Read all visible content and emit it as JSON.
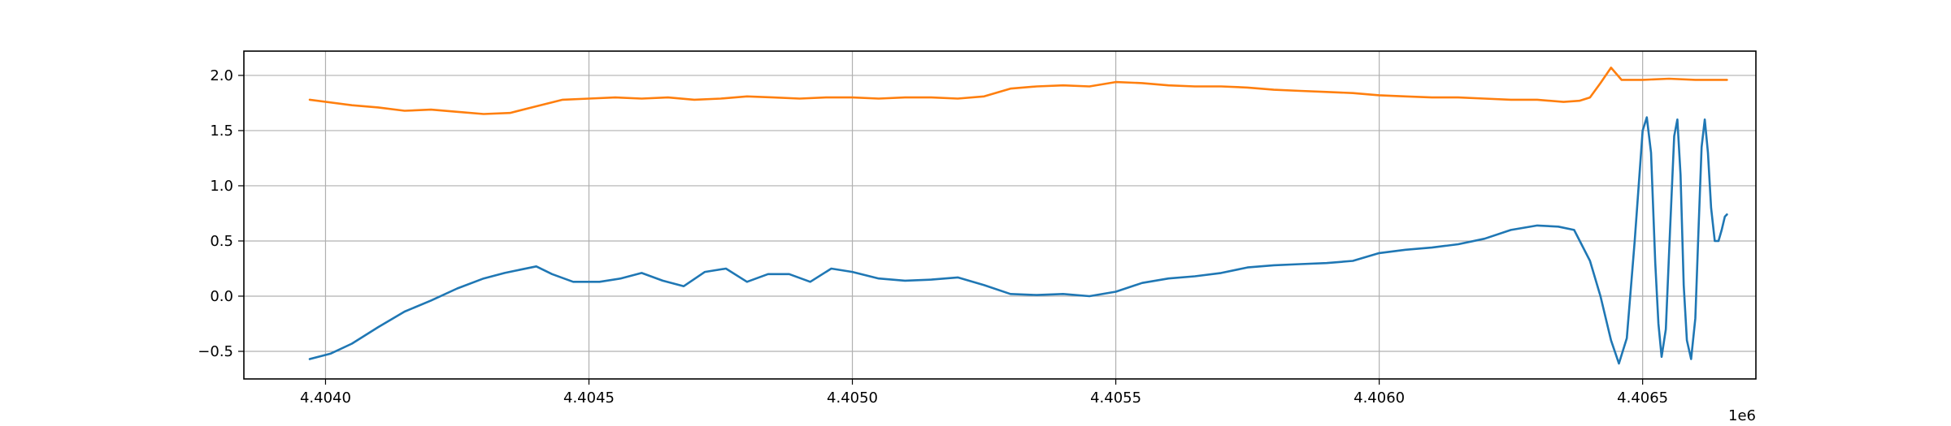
{
  "chart_data": {
    "type": "line",
    "title": "",
    "xlabel": "",
    "ylabel": "",
    "x_offset_label": "1e6",
    "xlim": [
      4403845,
      4406715
    ],
    "ylim": [
      -0.75,
      2.22
    ],
    "grid": true,
    "legend": "none",
    "xticks": [
      4404000,
      4404500,
      4405000,
      4405500,
      4406000,
      4406500
    ],
    "xtick_labels": [
      "4.4040",
      "4.4045",
      "4.4050",
      "4.4055",
      "4.4060",
      "4.4065"
    ],
    "yticks": [
      -0.5,
      0.0,
      0.5,
      1.0,
      1.5,
      2.0
    ],
    "ytick_labels": [
      "−0.5",
      "0.0",
      "0.5",
      "1.0",
      "1.5",
      "2.0"
    ],
    "series": [
      {
        "color": "#1f77b4",
        "x": [
          4403970,
          4404010,
          4404050,
          4404100,
          4404150,
          4404200,
          4404250,
          4404300,
          4404340,
          4404370,
          4404400,
          4404430,
          4404470,
          4404520,
          4404560,
          4404600,
          4404640,
          4404680,
          4404720,
          4404760,
          4404800,
          4404840,
          4404880,
          4404920,
          4404960,
          4405000,
          4405050,
          4405100,
          4405150,
          4405200,
          4405250,
          4405300,
          4405350,
          4405400,
          4405450,
          4405500,
          4405550,
          4405600,
          4405650,
          4405700,
          4405750,
          4405800,
          4405850,
          4405900,
          4405950,
          4406000,
          4406050,
          4406100,
          4406150,
          4406200,
          4406250,
          4406300,
          4406340,
          4406370,
          4406400,
          4406420,
          4406440,
          4406455,
          4406470,
          4406485,
          4406500,
          4406508,
          4406516,
          4406524,
          4406530,
          4406536,
          4406544,
          4406552,
          4406560,
          4406566,
          4406572,
          4406578,
          4406584,
          4406592,
          4406600,
          4406606,
          4406612,
          4406618,
          4406624,
          4406630,
          4406637,
          4406644,
          4406650,
          4406656,
          4406660
        ],
        "y": [
          -0.57,
          -0.52,
          -0.43,
          -0.28,
          -0.14,
          -0.04,
          0.07,
          0.16,
          0.21,
          0.24,
          0.27,
          0.2,
          0.13,
          0.13,
          0.16,
          0.21,
          0.14,
          0.09,
          0.22,
          0.25,
          0.13,
          0.2,
          0.2,
          0.13,
          0.25,
          0.22,
          0.16,
          0.14,
          0.15,
          0.17,
          0.1,
          0.02,
          0.01,
          0.02,
          0.0,
          0.04,
          0.12,
          0.16,
          0.18,
          0.21,
          0.26,
          0.28,
          0.29,
          0.3,
          0.32,
          0.39,
          0.42,
          0.44,
          0.47,
          0.52,
          0.6,
          0.64,
          0.63,
          0.6,
          0.32,
          0.0,
          -0.4,
          -0.61,
          -0.38,
          0.5,
          1.5,
          1.62,
          1.3,
          0.3,
          -0.25,
          -0.55,
          -0.3,
          0.6,
          1.45,
          1.6,
          1.1,
          0.1,
          -0.4,
          -0.57,
          -0.2,
          0.6,
          1.35,
          1.6,
          1.3,
          0.8,
          0.5,
          0.5,
          0.6,
          0.72,
          0.74
        ]
      },
      {
        "color": "#ff7f0e",
        "x": [
          4403970,
          4404050,
          4404100,
          4404150,
          4404200,
          4404250,
          4404300,
          4404350,
          4404400,
          4404450,
          4404500,
          4404550,
          4404600,
          4404650,
          4404700,
          4404750,
          4404800,
          4404850,
          4404900,
          4404950,
          4405000,
          4405050,
          4405100,
          4405150,
          4405200,
          4405250,
          4405300,
          4405350,
          4405400,
          4405450,
          4405500,
          4405550,
          4405600,
          4405650,
          4405700,
          4405750,
          4405800,
          4405850,
          4405900,
          4405950,
          4406000,
          4406050,
          4406100,
          4406150,
          4406200,
          4406250,
          4406300,
          4406350,
          4406380,
          4406400,
          4406420,
          4406440,
          4406460,
          4406500,
          4406550,
          4406600,
          4406660
        ],
        "y": [
          1.78,
          1.73,
          1.71,
          1.68,
          1.69,
          1.67,
          1.65,
          1.66,
          1.72,
          1.78,
          1.79,
          1.8,
          1.79,
          1.8,
          1.78,
          1.79,
          1.81,
          1.8,
          1.79,
          1.8,
          1.8,
          1.79,
          1.8,
          1.8,
          1.79,
          1.81,
          1.88,
          1.9,
          1.91,
          1.9,
          1.94,
          1.93,
          1.91,
          1.9,
          1.9,
          1.89,
          1.87,
          1.86,
          1.85,
          1.84,
          1.82,
          1.81,
          1.8,
          1.8,
          1.79,
          1.78,
          1.78,
          1.76,
          1.77,
          1.8,
          1.93,
          2.07,
          1.96,
          1.96,
          1.97,
          1.96,
          1.96
        ]
      }
    ]
  }
}
